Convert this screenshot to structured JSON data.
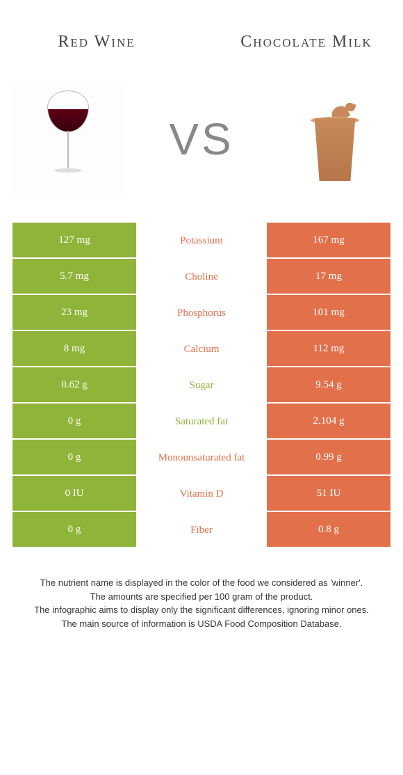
{
  "colors": {
    "left": "#8fb43a",
    "right": "#e2714b"
  },
  "header": {
    "left_title": "Red Wine",
    "right_title": "Chocolate Milk",
    "vs": "VS"
  },
  "rows": [
    {
      "nutrient": "Potassium",
      "left": "127 mg",
      "right": "167 mg",
      "winner": "right"
    },
    {
      "nutrient": "Choline",
      "left": "5.7 mg",
      "right": "17 mg",
      "winner": "right"
    },
    {
      "nutrient": "Phosphorus",
      "left": "23 mg",
      "right": "101 mg",
      "winner": "right"
    },
    {
      "nutrient": "Calcium",
      "left": "8 mg",
      "right": "112 mg",
      "winner": "right"
    },
    {
      "nutrient": "Sugar",
      "left": "0.62 g",
      "right": "9.54 g",
      "winner": "left"
    },
    {
      "nutrient": "Saturated fat",
      "left": "0 g",
      "right": "2.104 g",
      "winner": "left"
    },
    {
      "nutrient": "Monounsaturated fat",
      "left": "0 g",
      "right": "0.99 g",
      "winner": "right"
    },
    {
      "nutrient": "Vitamin D",
      "left": "0 IU",
      "right": "51 IU",
      "winner": "right"
    },
    {
      "nutrient": "Fiber",
      "left": "0 g",
      "right": "0.8 g",
      "winner": "right"
    }
  ],
  "footer": [
    "The nutrient name is displayed in the color of the food we considered as 'winner'.",
    "The amounts are specified per 100 gram of the product.",
    "The infographic aims to display only the significant differences, ignoring minor ones.",
    "The main source of information is USDA Food Composition Database."
  ]
}
